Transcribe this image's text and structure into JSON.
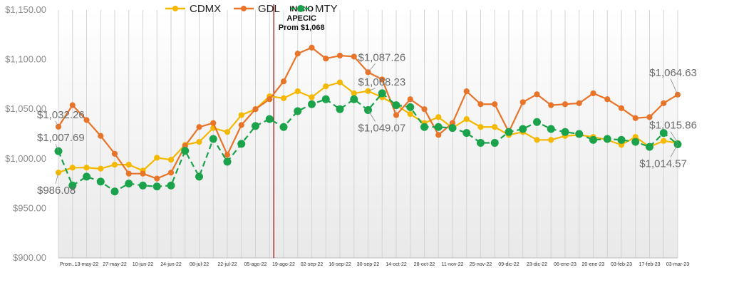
{
  "chart_data": {
    "type": "line",
    "title": "",
    "xlabel": "",
    "ylabel": "",
    "ylim": [
      900,
      1150
    ],
    "yticks": [
      "$900.00",
      "$950.00",
      "$1,000.00",
      "$1,050.00",
      "$1,100.00",
      "$1,150.00"
    ],
    "ytick_values": [
      900,
      950,
      1000,
      1050,
      1100,
      1150
    ],
    "xtick_labels": [
      "Prom...",
      "",
      "13-may-22",
      "",
      "27-may-22",
      "",
      "10-jun-22",
      "",
      "24-jun-22",
      "",
      "08-jul-22",
      "",
      "22-jul-22",
      "",
      "05-ago-22",
      "",
      "19-ago-22",
      "",
      "02-sep-22",
      "",
      "16-sep-22",
      "",
      "30-sep-22",
      "",
      "14-oct-22",
      "",
      "28-oct-22",
      "",
      "11-nov-22",
      "",
      "25-nov-22",
      "",
      "09-dic-22",
      "",
      "23-dic-22",
      "",
      "06-ene-23",
      "",
      "20-ene-23",
      "",
      "03-feb-23",
      "",
      "17-feb-23",
      "",
      "03-mar-23"
    ],
    "grid": "vertical",
    "legend_position": "top-center",
    "series": [
      {
        "name": "CDMX",
        "color": "#f5b800",
        "style": "solid",
        "values": [
          986.08,
          991,
          991,
          990,
          994,
          994,
          988,
          1001,
          999,
          1014,
          1017,
          1031,
          1027,
          1044,
          1050,
          1063,
          1061,
          1068,
          1062,
          1073,
          1077,
          1066,
          1068.23,
          1062,
          1054,
          1045,
          1036,
          1042,
          1031,
          1040,
          1032,
          1032,
          1024,
          1027,
          1019,
          1019,
          1023,
          1024,
          1022,
          1019,
          1014,
          1022,
          1012,
          1018,
          1015.86
        ]
      },
      {
        "name": "GDL",
        "color": "#e8742a",
        "style": "solid",
        "values": [
          1032.26,
          1054,
          1039,
          1023,
          1005,
          985,
          985,
          980,
          986,
          1013,
          1032,
          1036,
          1004,
          1034,
          1050,
          1060,
          1078,
          1106,
          1112,
          1101,
          1104,
          1103,
          1087.26,
          1080,
          1044,
          1060,
          1050,
          1024,
          1036,
          1068,
          1055,
          1055,
          1027,
          1057,
          1065,
          1054,
          1055,
          1056,
          1066,
          1060,
          1051,
          1041,
          1042,
          1056,
          1064.63
        ]
      },
      {
        "name": "MTY",
        "color": "#1aa34a",
        "style": "dashed",
        "values": [
          1007.69,
          973,
          982,
          977,
          967,
          975,
          973,
          972,
          973,
          1008,
          982,
          1020,
          997,
          1015,
          1033,
          1040,
          1032,
          1048,
          1055,
          1060,
          1050,
          1060,
          1049.07,
          1066,
          1054,
          1052,
          1032,
          1032,
          1031,
          1026,
          1016,
          1016,
          1027,
          1030,
          1037,
          1030,
          1027,
          1025,
          1019,
          1020,
          1019,
          1017,
          1012,
          1026,
          1014.57
        ]
      }
    ],
    "reference_line": {
      "index": 15.3,
      "color": "#9b1c1c",
      "label_lines": [
        "INICIO",
        "APECIC",
        "Prom $1,068"
      ]
    },
    "annotations": [
      {
        "text": "$1,032.26",
        "series": "GDL",
        "index": 0
      },
      {
        "text": "$1,007.69",
        "series": "MTY",
        "index": 0
      },
      {
        "text": "$986.08",
        "series": "CDMX",
        "index": 0
      },
      {
        "text": "$1,087.26",
        "series": "GDL",
        "index": 22
      },
      {
        "text": "$1,068.23",
        "series": "CDMX",
        "index": 22
      },
      {
        "text": "$1,049.07",
        "series": "MTY",
        "index": 22
      },
      {
        "text": "$1,064.63",
        "series": "GDL",
        "index": 44
      },
      {
        "text": "$1,015.86",
        "series": "CDMX",
        "index": 44
      },
      {
        "text": "$1,014.57",
        "series": "MTY",
        "index": 44
      }
    ]
  }
}
